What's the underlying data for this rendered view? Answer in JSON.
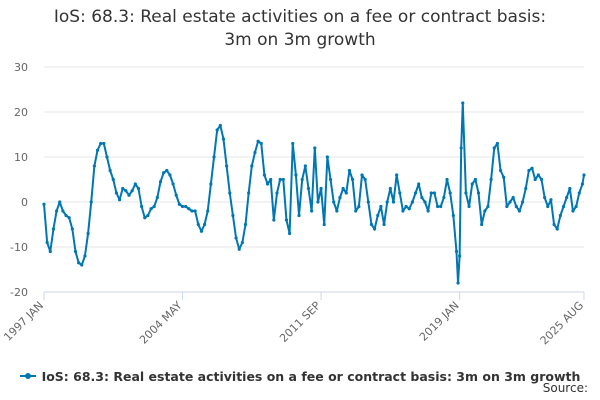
{
  "title_line1": "IoS: 68.3: Real estate activities on a fee or contract basis:",
  "title_line2": "3m on 3m growth",
  "legend_label": "IoS: 68.3: Real estate activities on a fee or contract basis: 3m on 3m growth",
  "source_label": "Source:",
  "colors": {
    "series": "#0077b3",
    "grid": "#e6e6e6",
    "axis": "#ccd6eb",
    "text": "#666666"
  },
  "chart_data": {
    "type": "line",
    "title": "IoS: 68.3: Real estate activities on a fee or contract basis: 3m on 3m growth",
    "xlabel": "",
    "ylabel": "",
    "ylim": [
      -20,
      30
    ],
    "yticks": [
      -20,
      -10,
      0,
      10,
      20,
      30
    ],
    "xlim": [
      "1997-01",
      "2025-08"
    ],
    "xtick_labels": [
      {
        "date": "1997-01",
        "label": "1997 JAN"
      },
      {
        "date": "2004-05",
        "label": "2004 MAY"
      },
      {
        "date": "2011-09",
        "label": "2011 SEP"
      },
      {
        "date": "2019-01",
        "label": "2019 JAN"
      },
      {
        "date": "2025-08",
        "label": "2025 AUG"
      }
    ],
    "grid": true,
    "legend_position": "bottom",
    "series": [
      {
        "name": "IoS: 68.3: Real estate activities on a fee or contract basis: 3m on 3m growth",
        "points": [
          [
            "1997-01",
            -0.5
          ],
          [
            "1997-03",
            -9
          ],
          [
            "1997-05",
            -11
          ],
          [
            "1997-07",
            -6
          ],
          [
            "1997-09",
            -2
          ],
          [
            "1997-11",
            0
          ],
          [
            "1998-01",
            -2
          ],
          [
            "1998-03",
            -3
          ],
          [
            "1998-05",
            -3.5
          ],
          [
            "1998-07",
            -6
          ],
          [
            "1998-09",
            -11
          ],
          [
            "1998-11",
            -13.5
          ],
          [
            "1999-01",
            -14
          ],
          [
            "1999-03",
            -12
          ],
          [
            "1999-05",
            -7
          ],
          [
            "1999-07",
            0
          ],
          [
            "1999-09",
            8
          ],
          [
            "1999-11",
            11.5
          ],
          [
            "2000-01",
            13
          ],
          [
            "2000-03",
            13
          ],
          [
            "2000-05",
            10
          ],
          [
            "2000-07",
            7
          ],
          [
            "2000-09",
            5
          ],
          [
            "2000-11",
            2
          ],
          [
            "2001-01",
            0.5
          ],
          [
            "2001-03",
            3
          ],
          [
            "2001-05",
            2.5
          ],
          [
            "2001-07",
            1.5
          ],
          [
            "2001-09",
            2.5
          ],
          [
            "2001-11",
            4
          ],
          [
            "2002-01",
            3
          ],
          [
            "2002-03",
            -1
          ],
          [
            "2002-05",
            -3.5
          ],
          [
            "2002-07",
            -3
          ],
          [
            "2002-09",
            -1.5
          ],
          [
            "2002-11",
            -1
          ],
          [
            "2003-01",
            1
          ],
          [
            "2003-03",
            4.5
          ],
          [
            "2003-05",
            6.5
          ],
          [
            "2003-07",
            7
          ],
          [
            "2003-09",
            6
          ],
          [
            "2003-11",
            4
          ],
          [
            "2004-01",
            1.5
          ],
          [
            "2004-03",
            -0.5
          ],
          [
            "2004-05",
            -1
          ],
          [
            "2004-07",
            -1
          ],
          [
            "2004-09",
            -1.5
          ],
          [
            "2004-11",
            -2
          ],
          [
            "2005-01",
            -2
          ],
          [
            "2005-03",
            -5
          ],
          [
            "2005-05",
            -6.5
          ],
          [
            "2005-07",
            -5
          ],
          [
            "2005-09",
            -2
          ],
          [
            "2005-11",
            4
          ],
          [
            "2006-01",
            10
          ],
          [
            "2006-03",
            16
          ],
          [
            "2006-05",
            17
          ],
          [
            "2006-07",
            14
          ],
          [
            "2006-09",
            8
          ],
          [
            "2006-11",
            2
          ],
          [
            "2007-01",
            -3
          ],
          [
            "2007-03",
            -8
          ],
          [
            "2007-05",
            -10.5
          ],
          [
            "2007-07",
            -9
          ],
          [
            "2007-09",
            -5
          ],
          [
            "2007-11",
            2
          ],
          [
            "2008-01",
            8
          ],
          [
            "2008-03",
            11
          ],
          [
            "2008-05",
            13.5
          ],
          [
            "2008-07",
            13
          ],
          [
            "2008-09",
            6
          ],
          [
            "2008-11",
            4
          ],
          [
            "2009-01",
            5
          ],
          [
            "2009-03",
            -4
          ],
          [
            "2009-05",
            2
          ],
          [
            "2009-07",
            5
          ],
          [
            "2009-09",
            5
          ],
          [
            "2009-11",
            -4
          ],
          [
            "2010-01",
            -7
          ],
          [
            "2010-03",
            13
          ],
          [
            "2010-05",
            6
          ],
          [
            "2010-07",
            -3
          ],
          [
            "2010-09",
            5
          ],
          [
            "2010-11",
            8
          ],
          [
            "2011-01",
            3
          ],
          [
            "2011-03",
            -2
          ],
          [
            "2011-05",
            12
          ],
          [
            "2011-07",
            0
          ],
          [
            "2011-09",
            3
          ],
          [
            "2011-11",
            -5
          ],
          [
            "2012-01",
            10
          ],
          [
            "2012-03",
            5
          ],
          [
            "2012-05",
            0
          ],
          [
            "2012-07",
            -2
          ],
          [
            "2012-09",
            1
          ],
          [
            "2012-11",
            3
          ],
          [
            "2013-01",
            2
          ],
          [
            "2013-03",
            7
          ],
          [
            "2013-05",
            5
          ],
          [
            "2013-07",
            -2
          ],
          [
            "2013-09",
            -1
          ],
          [
            "2013-11",
            6
          ],
          [
            "2014-01",
            5
          ],
          [
            "2014-03",
            0
          ],
          [
            "2014-05",
            -5
          ],
          [
            "2014-07",
            -6
          ],
          [
            "2014-09",
            -3
          ],
          [
            "2014-11",
            -1
          ],
          [
            "2015-01",
            -5
          ],
          [
            "2015-03",
            0
          ],
          [
            "2015-05",
            3
          ],
          [
            "2015-07",
            0
          ],
          [
            "2015-09",
            6
          ],
          [
            "2015-11",
            2
          ],
          [
            "2016-01",
            -2
          ],
          [
            "2016-03",
            -1
          ],
          [
            "2016-05",
            -1.5
          ],
          [
            "2016-07",
            0
          ],
          [
            "2016-09",
            2
          ],
          [
            "2016-11",
            4
          ],
          [
            "2017-01",
            1
          ],
          [
            "2017-03",
            0
          ],
          [
            "2017-05",
            -2
          ],
          [
            "2017-07",
            2
          ],
          [
            "2017-09",
            2
          ],
          [
            "2017-11",
            -1
          ],
          [
            "2018-01",
            -1
          ],
          [
            "2018-03",
            1
          ],
          [
            "2018-05",
            5
          ],
          [
            "2018-07",
            2
          ],
          [
            "2018-09",
            -3
          ],
          [
            "2018-11",
            -11
          ],
          [
            "2018-12",
            -18
          ],
          [
            "2019-01",
            -12
          ],
          [
            "2019-02",
            12
          ],
          [
            "2019-03",
            22
          ],
          [
            "2019-05",
            2
          ],
          [
            "2019-07",
            -1
          ],
          [
            "2019-09",
            4
          ],
          [
            "2019-11",
            5
          ],
          [
            "2020-01",
            2
          ],
          [
            "2020-03",
            -5
          ],
          [
            "2020-05",
            -2
          ],
          [
            "2020-07",
            -1
          ],
          [
            "2020-09",
            5
          ],
          [
            "2020-11",
            12
          ],
          [
            "2021-01",
            13
          ],
          [
            "2021-03",
            7
          ],
          [
            "2021-05",
            5.5
          ],
          [
            "2021-07",
            -1
          ],
          [
            "2021-09",
            0
          ],
          [
            "2021-11",
            1
          ],
          [
            "2022-01",
            -1
          ],
          [
            "2022-03",
            -2
          ],
          [
            "2022-05",
            0
          ],
          [
            "2022-07",
            3
          ],
          [
            "2022-09",
            7
          ],
          [
            "2022-11",
            7.5
          ],
          [
            "2023-01",
            5
          ],
          [
            "2023-03",
            6
          ],
          [
            "2023-05",
            5
          ],
          [
            "2023-07",
            1
          ],
          [
            "2023-09",
            -1
          ],
          [
            "2023-11",
            0.5
          ],
          [
            "2024-01",
            -5
          ],
          [
            "2024-03",
            -6
          ],
          [
            "2024-05",
            -3
          ],
          [
            "2024-07",
            -1
          ],
          [
            "2024-09",
            1
          ],
          [
            "2024-11",
            3
          ],
          [
            "2025-01",
            -2
          ],
          [
            "2025-03",
            -1
          ],
          [
            "2025-05",
            2
          ],
          [
            "2025-07",
            4
          ],
          [
            "2025-08",
            6
          ]
        ]
      }
    ]
  }
}
